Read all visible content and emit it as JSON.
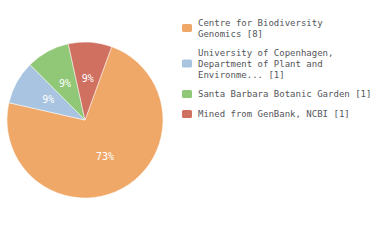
{
  "chart_data": {
    "type": "pie",
    "categories": [
      "Centre for Biodiversity\nGenomics [8]",
      "University of Copenhagen,\nDepartment of Plant and\nEnvironme... [1]",
      "Santa Barbara Botanic Garden [1]",
      "Mined from GenBank, NCBI [1]"
    ],
    "values": [
      73,
      9,
      9,
      9
    ],
    "value_labels": [
      "73%",
      "9%",
      "9%",
      "9%"
    ],
    "colors": [
      "#F0A868",
      "#A8C4E0",
      "#90C878",
      "#D07060"
    ],
    "data_labels": true,
    "legend": "right"
  }
}
